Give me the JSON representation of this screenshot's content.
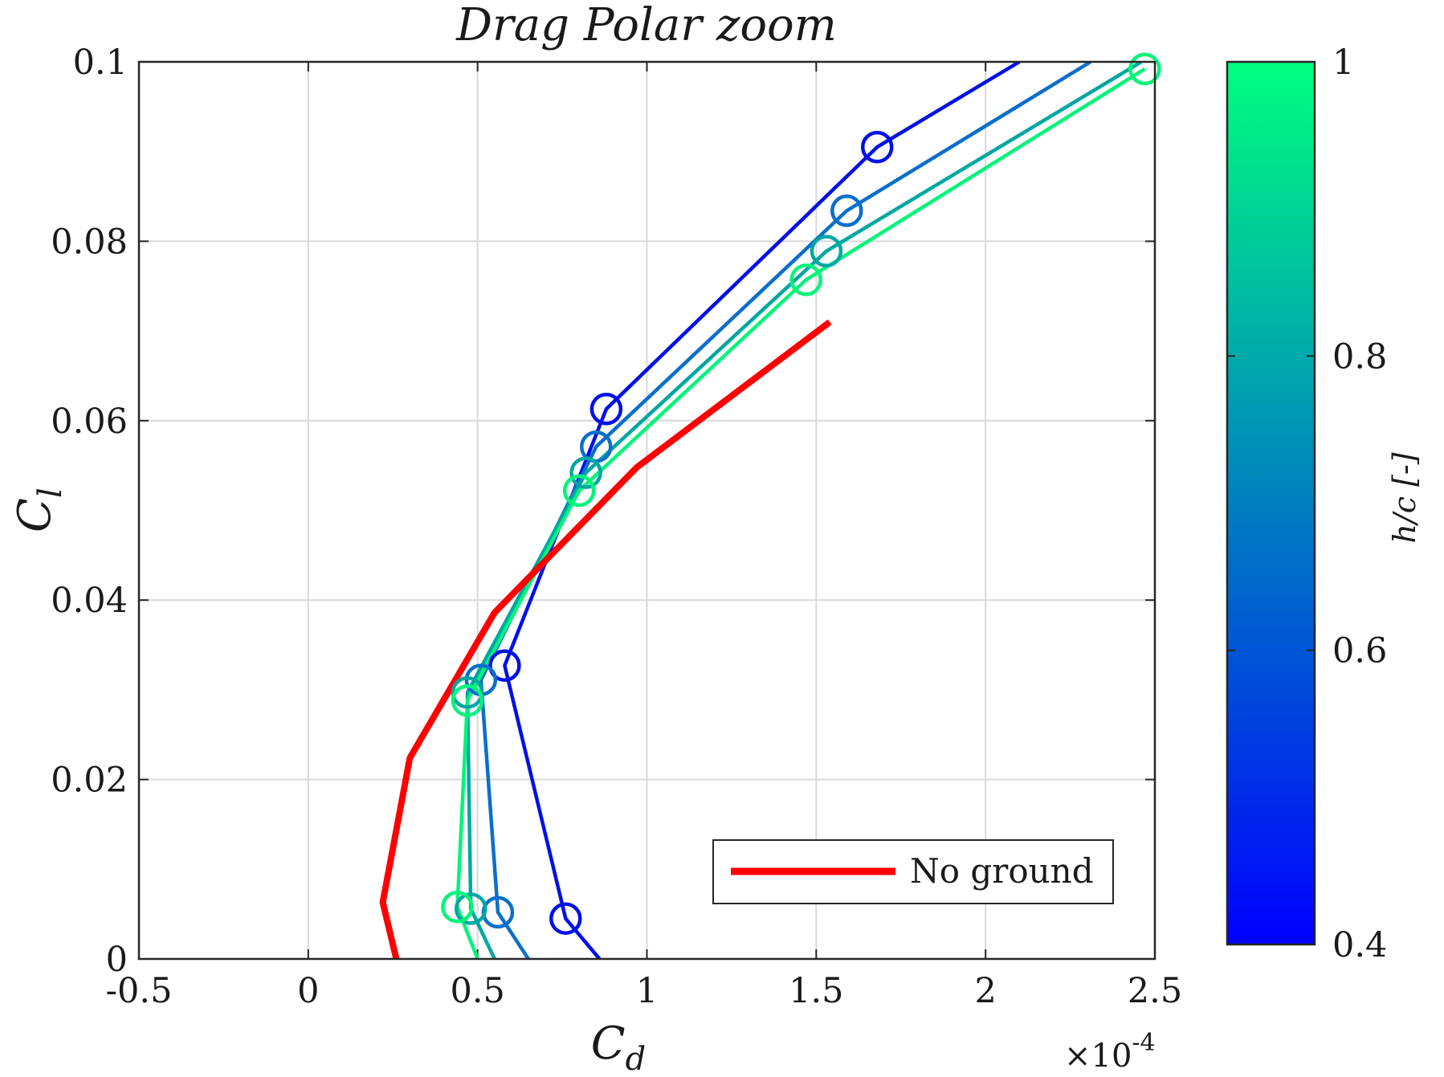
{
  "chart_data": {
    "type": "line",
    "title": "Drag Polar zoom",
    "xlabel_main": "C",
    "xlabel_sub": "d",
    "ylabel_main": "C",
    "ylabel_sub": "l",
    "x_exponent_label": "×10",
    "x_exponent_power": "-4",
    "xlim": [
      -0.5,
      2.5
    ],
    "ylim": [
      0,
      0.1
    ],
    "xticks": [
      -0.5,
      0,
      0.5,
      1,
      1.5,
      2,
      2.5
    ],
    "xtick_labels": [
      "-0.5",
      "0",
      "0.5",
      "1",
      "1.5",
      "2",
      "2.5"
    ],
    "yticks": [
      0,
      0.02,
      0.04,
      0.06,
      0.08,
      0.1
    ],
    "ytick_labels": [
      "0",
      "0.02",
      "0.04",
      "0.06",
      "0.08",
      "0.1"
    ],
    "grid": true,
    "legend": {
      "position": "bottom-right",
      "entries": [
        "No ground"
      ]
    },
    "series": [
      {
        "name": "No ground",
        "color": "#ff0000",
        "marker": "none",
        "x": [
          0.26,
          0.22,
          0.3,
          0.55,
          0.97,
          1.54
        ],
        "y": [
          0.0,
          0.0063,
          0.0224,
          0.0386,
          0.0548,
          0.071
        ]
      },
      {
        "hc": 0.4,
        "color": "#0010e8",
        "marker": "circle",
        "x": [
          0.86,
          0.76,
          0.58,
          0.88,
          1.68,
          2.1
        ],
        "y": [
          0.0,
          0.0045,
          0.0327,
          0.0613,
          0.0905,
          0.1
        ]
      },
      {
        "hc": 0.6,
        "color": "#0a6fcc",
        "marker": "circle",
        "x": [
          0.65,
          0.56,
          0.51,
          0.85,
          1.59,
          2.31
        ],
        "y": [
          0.0,
          0.0052,
          0.0311,
          0.0571,
          0.0834,
          0.1
        ]
      },
      {
        "hc": 0.8,
        "color": "#00a7a2",
        "marker": "circle",
        "x": [
          0.55,
          0.48,
          0.47,
          0.82,
          1.53,
          2.46
        ],
        "y": [
          0.0,
          0.0056,
          0.0297,
          0.0542,
          0.0789,
          0.1
        ]
      },
      {
        "hc": 1.0,
        "color": "#00f57a",
        "marker": "circle",
        "x": [
          0.5,
          0.44,
          0.47,
          0.8,
          1.47,
          2.47
        ],
        "y": [
          0.0,
          0.0058,
          0.0288,
          0.0522,
          0.0757,
          0.0992
        ]
      }
    ],
    "colorbar": {
      "label": "h/c [-]",
      "range": [
        0.4,
        1
      ],
      "ticks": [
        0.4,
        0.6,
        0.8,
        1
      ],
      "tick_labels": [
        "0.4",
        "0.6",
        "0.8",
        "1"
      ],
      "color_low": "#0000ff",
      "color_high": "#00ff80"
    }
  }
}
